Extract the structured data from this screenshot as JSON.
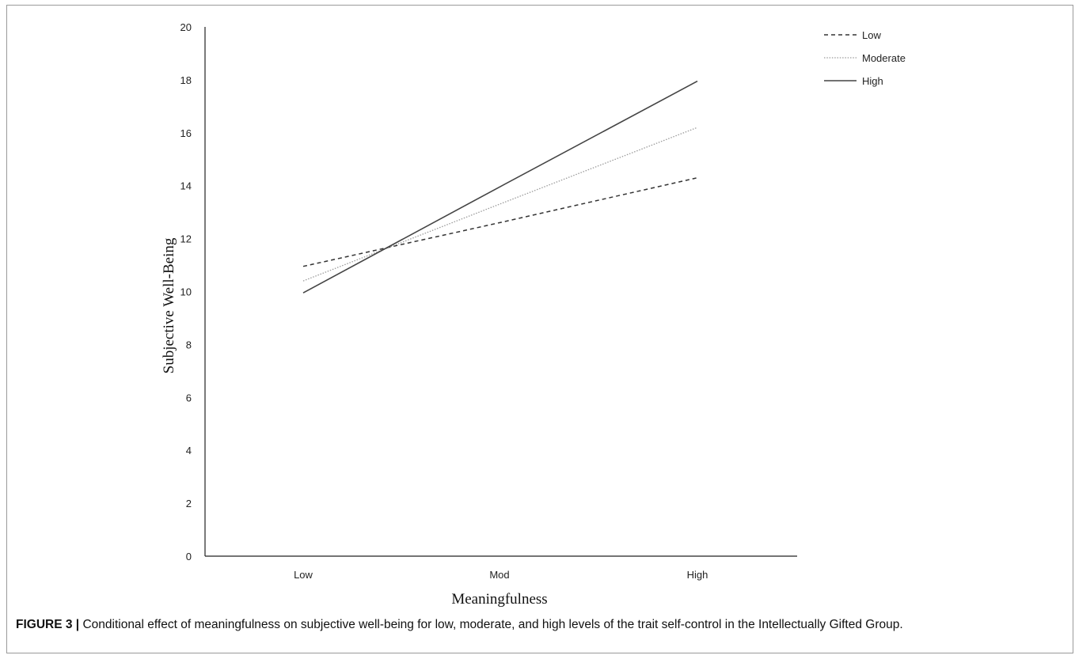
{
  "chart_data": {
    "type": "line",
    "categories": [
      "Low",
      "Mod",
      "High"
    ],
    "xlabel": "Meaningfulness",
    "ylabel": "Subjective  Well-Being",
    "ylim": [
      0,
      20
    ],
    "yticks": [
      0,
      2,
      4,
      6,
      8,
      10,
      12,
      14,
      16,
      18,
      20
    ],
    "grid": false,
    "legend_position": "top-right",
    "series": [
      {
        "name": "Low",
        "style": "dashed",
        "color": "#333333",
        "values": [
          10.95,
          12.6,
          14.3
        ]
      },
      {
        "name": "Moderate",
        "style": "dotted",
        "color": "#9a9a9a",
        "values": [
          10.4,
          13.3,
          16.2
        ]
      },
      {
        "name": "High",
        "style": "solid",
        "color": "#444444",
        "values": [
          9.95,
          13.95,
          17.95
        ]
      }
    ]
  },
  "caption": {
    "label": "FIGURE 3 |",
    "text": " Conditional effect of meaningfulness on subjective well-being for low, moderate, and high levels of the trait self-control in the Intellectually Gifted Group."
  }
}
